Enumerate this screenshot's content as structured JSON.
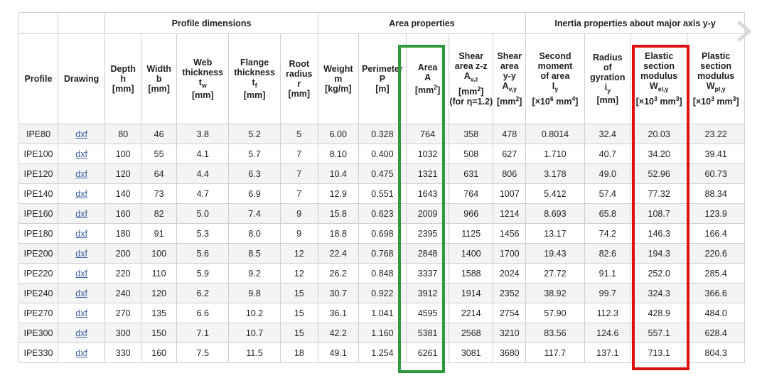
{
  "groups": {
    "profile_dimensions": "Profile dimensions",
    "area_properties": "Area properties",
    "inertia": "Inertia properties about major axis y-y"
  },
  "headers": {
    "profile": "Profile",
    "drawing": "Drawing",
    "depth": {
      "name": "Depth",
      "sym": "h",
      "unit": "[mm]"
    },
    "width": {
      "name": "Width",
      "sym": "b",
      "unit": "[mm]"
    },
    "web": {
      "name1": "Web",
      "name2": "thickness",
      "sym": "t",
      "sub": "w",
      "unit": "[mm]"
    },
    "flange": {
      "name1": "Flange",
      "name2": "thickness",
      "sym": "t",
      "sub": "f",
      "unit": "[mm]"
    },
    "root": {
      "name1": "Root",
      "name2": "radius",
      "sym": "r",
      "unit": "[mm]"
    },
    "weight": {
      "name": "Weight",
      "sym": "m",
      "unit": "[kg/m]"
    },
    "perimeter": {
      "name": "Perimeter",
      "sym": "P",
      "unit": "[m]"
    },
    "area": {
      "name": "Area",
      "sym": "A",
      "unit_pre": "[mm",
      "unit_sup": "2",
      "unit_post": "]"
    },
    "shear_z": {
      "name1": "Shear",
      "name2": "area z-z",
      "sym": "A",
      "sub": "v,z",
      "unit_pre": "[mm",
      "unit_sup": "2",
      "unit_post": "]",
      "note": "(for η=1.2)"
    },
    "shear_y": {
      "name1": "Shear",
      "name2": "area",
      "name3": "y-y",
      "sym": "A",
      "sub": "v,y",
      "unit_pre": "[mm",
      "unit_sup": "2",
      "unit_post": "]"
    },
    "second_moment": {
      "name1": "Second",
      "name2": "moment",
      "name3": "of area",
      "sym": "I",
      "sub": "y",
      "unit_pre": "[×10",
      "unit_sup": "6",
      "unit_mid": " mm",
      "unit_sup2": "4",
      "unit_post": "]"
    },
    "radius_gyration": {
      "name1": "Radius",
      "name2": "of",
      "name3": "gyration",
      "sym": "i",
      "sub": "y",
      "unit": "[mm]"
    },
    "elastic": {
      "name1": "Elastic",
      "name2": "section",
      "name3": "modulus",
      "sym": "W",
      "sub": "el,y",
      "unit_pre": "[×10",
      "unit_sup": "3",
      "unit_mid": " mm",
      "unit_sup2": "3",
      "unit_post": "]"
    },
    "plastic": {
      "name1": "Plastic",
      "name2": "section",
      "name3": "modulus",
      "sym": "W",
      "sub": "pl,y",
      "unit_pre": "[×10",
      "unit_sup": "3",
      "unit_mid": " mm",
      "unit_sup2": "3",
      "unit_post": "]"
    }
  },
  "rows": [
    [
      "IPE80",
      "dxf",
      "80",
      "46",
      "3.8",
      "5.2",
      "5",
      "6.00",
      "0.328",
      "764",
      "358",
      "478",
      "0.8014",
      "32.4",
      "20.03",
      "23.22"
    ],
    [
      "IPE100",
      "dxf",
      "100",
      "55",
      "4.1",
      "5.7",
      "7",
      "8.10",
      "0.400",
      "1032",
      "508",
      "627",
      "1.710",
      "40.7",
      "34.20",
      "39.41"
    ],
    [
      "IPE120",
      "dxf",
      "120",
      "64",
      "4.4",
      "6.3",
      "7",
      "10.4",
      "0.475",
      "1321",
      "631",
      "806",
      "3.178",
      "49.0",
      "52.96",
      "60.73"
    ],
    [
      "IPE140",
      "dxf",
      "140",
      "73",
      "4.7",
      "6.9",
      "7",
      "12.9",
      "0.551",
      "1643",
      "764",
      "1007",
      "5.412",
      "57.4",
      "77.32",
      "88.34"
    ],
    [
      "IPE160",
      "dxf",
      "160",
      "82",
      "5.0",
      "7.4",
      "9",
      "15.8",
      "0.623",
      "2009",
      "966",
      "1214",
      "8.693",
      "65.8",
      "108.7",
      "123.9"
    ],
    [
      "IPE180",
      "dxf",
      "180",
      "91",
      "5.3",
      "8.0",
      "9",
      "18.8",
      "0.698",
      "2395",
      "1125",
      "1456",
      "13.17",
      "74.2",
      "146.3",
      "166.4"
    ],
    [
      "IPE200",
      "dxf",
      "200",
      "100",
      "5.6",
      "8.5",
      "12",
      "22.4",
      "0.768",
      "2848",
      "1400",
      "1700",
      "19.43",
      "82.6",
      "194.3",
      "220.6"
    ],
    [
      "IPE220",
      "dxf",
      "220",
      "110",
      "5.9",
      "9.2",
      "12",
      "26.2",
      "0.848",
      "3337",
      "1588",
      "2024",
      "27.72",
      "91.1",
      "252.0",
      "285.4"
    ],
    [
      "IPE240",
      "dxf",
      "240",
      "120",
      "6.2",
      "9.8",
      "15",
      "30.7",
      "0.922",
      "3912",
      "1914",
      "2352",
      "38.92",
      "99.7",
      "324.3",
      "366.6"
    ],
    [
      "IPE270",
      "dxf",
      "270",
      "135",
      "6.6",
      "10.2",
      "15",
      "36.1",
      "1.041",
      "4595",
      "2214",
      "2754",
      "57.90",
      "112.3",
      "428.9",
      "484.0"
    ],
    [
      "IPE300",
      "dxf",
      "300",
      "150",
      "7.1",
      "10.7",
      "15",
      "42.2",
      "1.160",
      "5381",
      "2568",
      "3210",
      "83.56",
      "124.6",
      "557.1",
      "628.4"
    ],
    [
      "IPE330",
      "dxf",
      "330",
      "160",
      "7.5",
      "11.5",
      "18",
      "49.1",
      "1.254",
      "6261",
      "3081",
      "3680",
      "117.7",
      "137.1",
      "713.1",
      "804.3"
    ]
  ]
}
